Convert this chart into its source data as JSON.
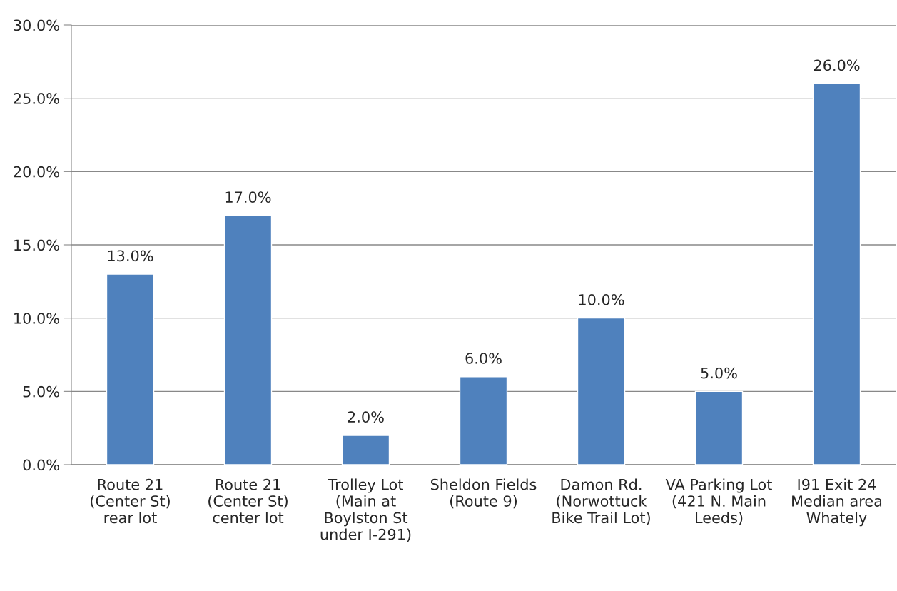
{
  "chart_data": {
    "type": "bar",
    "categories": [
      "Route 21\n(Center St)\nrear lot",
      "Route 21\n(Center St)\ncenter lot",
      "Trolley Lot\n(Main at\nBoylston St\nunder I-291)",
      "Sheldon Fields\n(Route 9)",
      "Damon Rd.\n(Norwottuck\nBike Trail Lot)",
      "VA Parking Lot\n(421 N. Main\nLeeds)",
      "I91 Exit 24\nMedian area\nWhately"
    ],
    "values": [
      13.0,
      17.0,
      2.0,
      6.0,
      10.0,
      5.0,
      26.0
    ],
    "color": "#4f81bd",
    "value_labels": [
      "13.0%",
      "17.0%",
      "2.0%",
      "6.0%",
      "10.0%",
      "5.0%",
      "26.0%"
    ],
    "ylim": [
      0,
      30
    ],
    "yticks": [
      {
        "value": 0,
        "label": "0.0%"
      },
      {
        "value": 5,
        "label": "5.0%"
      },
      {
        "value": 10,
        "label": "10.0%"
      },
      {
        "value": 15,
        "label": "15.0%"
      },
      {
        "value": 20,
        "label": "20.0%"
      },
      {
        "value": 25,
        "label": "25.0%"
      },
      {
        "value": 30,
        "label": "30.0%"
      }
    ],
    "grid": "y"
  }
}
